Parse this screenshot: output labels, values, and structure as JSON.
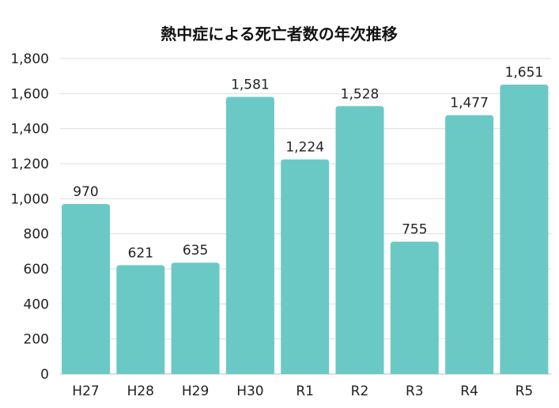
{
  "chart_data": {
    "type": "bar",
    "title": "熱中症による死亡者数の年次推移",
    "xlabel": "",
    "ylabel": "",
    "categories": [
      "H27",
      "H28",
      "H29",
      "H30",
      "R1",
      "R2",
      "R3",
      "R4",
      "R5"
    ],
    "values": [
      970,
      621,
      635,
      1581,
      1224,
      1528,
      755,
      1477,
      1651
    ],
    "data_labels": [
      "970",
      "621",
      "635",
      "1,581",
      "1,224",
      "1,528",
      "755",
      "1,477",
      "1,651"
    ],
    "ylim": [
      0,
      1800
    ],
    "yticks": [
      0,
      200,
      400,
      600,
      800,
      1000,
      1200,
      1400,
      1600,
      1800
    ],
    "ytick_labels": [
      "0",
      "200",
      "400",
      "600",
      "800",
      "1,000",
      "1,200",
      "1,400",
      "1,600",
      "1,800"
    ],
    "grid": true,
    "bar_color": "#6AC9C5"
  }
}
